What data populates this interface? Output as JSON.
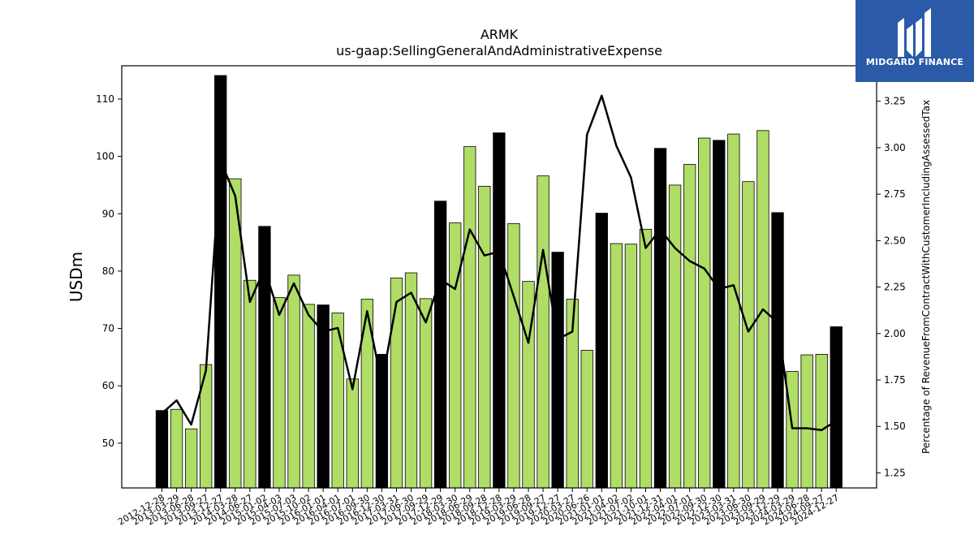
{
  "brand": {
    "name": "MIDGARD FINANCE",
    "bg_color": "#2a5aa8",
    "icon": "midgard-m-logo-icon"
  },
  "chart_data": {
    "type": "bar",
    "title": "ARMK",
    "subtitle": "us-gaap:SellingGeneralAndAdministrativeExpense",
    "ylabel": "USDm",
    "y2label": "Percentage of RevenueFromContractWithCustomerIncludingAssessedTax",
    "ylim": [
      42.2,
      115.8
    ],
    "y2lim": [
      1.169,
      3.441
    ],
    "yticks": [
      50,
      60,
      70,
      80,
      90,
      100,
      110
    ],
    "y2ticks": [
      1.25,
      1.5,
      1.75,
      2.0,
      2.25,
      2.5,
      2.75,
      3.0,
      3.25
    ],
    "y2tick_labels": [
      "1.25",
      "1.50",
      "1.75",
      "2.00",
      "2.25",
      "2.50",
      "2.75",
      "3.00",
      "3.25"
    ],
    "colors": {
      "quarter_bar": "#b0dd66",
      "annual_bar": "#000000",
      "bar_edge": "#000000",
      "line": "#000000"
    },
    "x": [
      "2012-12-28",
      "2013-03-29",
      "2013-06-28",
      "2013-09-27",
      "2013-12-27",
      "2014-03-28",
      "2014-06-27",
      "2015-01-02",
      "2015-04-03",
      "2015-07-03",
      "2015-10-02",
      "2016-01-01",
      "2016-04-01",
      "2016-07-01",
      "2016-09-30",
      "2016-12-30",
      "2017-03-31",
      "2017-06-30",
      "2017-09-29",
      "2017-12-29",
      "2018-03-30",
      "2018-06-29",
      "2018-09-28",
      "2018-12-28",
      "2019-03-29",
      "2019-06-28",
      "2019-09-27",
      "2019-12-27",
      "2020-03-27",
      "2020-06-26",
      "2021-01-01",
      "2021-04-02",
      "2021-07-02",
      "2021-10-01",
      "2021-12-31",
      "2022-04-01",
      "2022-07-01",
      "2022-09-30",
      "2022-12-30",
      "2023-03-31",
      "2023-06-30",
      "2023-09-29",
      "2023-12-29",
      "2024-03-29",
      "2024-06-28",
      "2024-09-27",
      "2024-12-27"
    ],
    "bar_values": [
      55.7,
      55.9,
      52.5,
      63.7,
      114.1,
      96.1,
      78.4,
      87.8,
      75.4,
      79.3,
      74.2,
      74.1,
      72.7,
      61.2,
      75.1,
      65.5,
      78.8,
      79.7,
      75.2,
      92.2,
      88.4,
      101.7,
      94.8,
      104.1,
      88.3,
      78.2,
      96.6,
      83.3,
      75.1,
      66.2,
      90.1,
      84.8,
      84.7,
      87.3,
      101.4,
      95.0,
      98.6,
      103.2,
      102.8,
      103.9,
      95.6,
      104.5,
      90.2,
      62.5,
      65.4,
      65.5,
      70.3
    ],
    "annual_flags": [
      true,
      false,
      false,
      false,
      true,
      false,
      false,
      true,
      false,
      false,
      false,
      true,
      false,
      false,
      false,
      true,
      false,
      false,
      false,
      true,
      false,
      false,
      false,
      true,
      false,
      false,
      false,
      true,
      false,
      false,
      true,
      false,
      false,
      false,
      true,
      false,
      false,
      false,
      true,
      false,
      false,
      false,
      true,
      false,
      false,
      false,
      true
    ],
    "line_values": [
      1.57,
      1.64,
      1.51,
      1.8,
      2.93,
      2.74,
      2.17,
      2.35,
      2.1,
      2.27,
      2.1,
      2.01,
      2.03,
      1.7,
      2.12,
      1.73,
      2.17,
      2.22,
      2.06,
      2.29,
      2.24,
      2.56,
      2.42,
      2.44,
      2.2,
      1.95,
      2.45,
      1.97,
      2.01,
      3.07,
      3.28,
      3.01,
      2.84,
      2.46,
      2.56,
      2.46,
      2.39,
      2.35,
      2.24,
      2.26,
      2.01,
      2.13,
      2.06,
      1.49,
      1.49,
      1.48,
      1.53
    ]
  }
}
